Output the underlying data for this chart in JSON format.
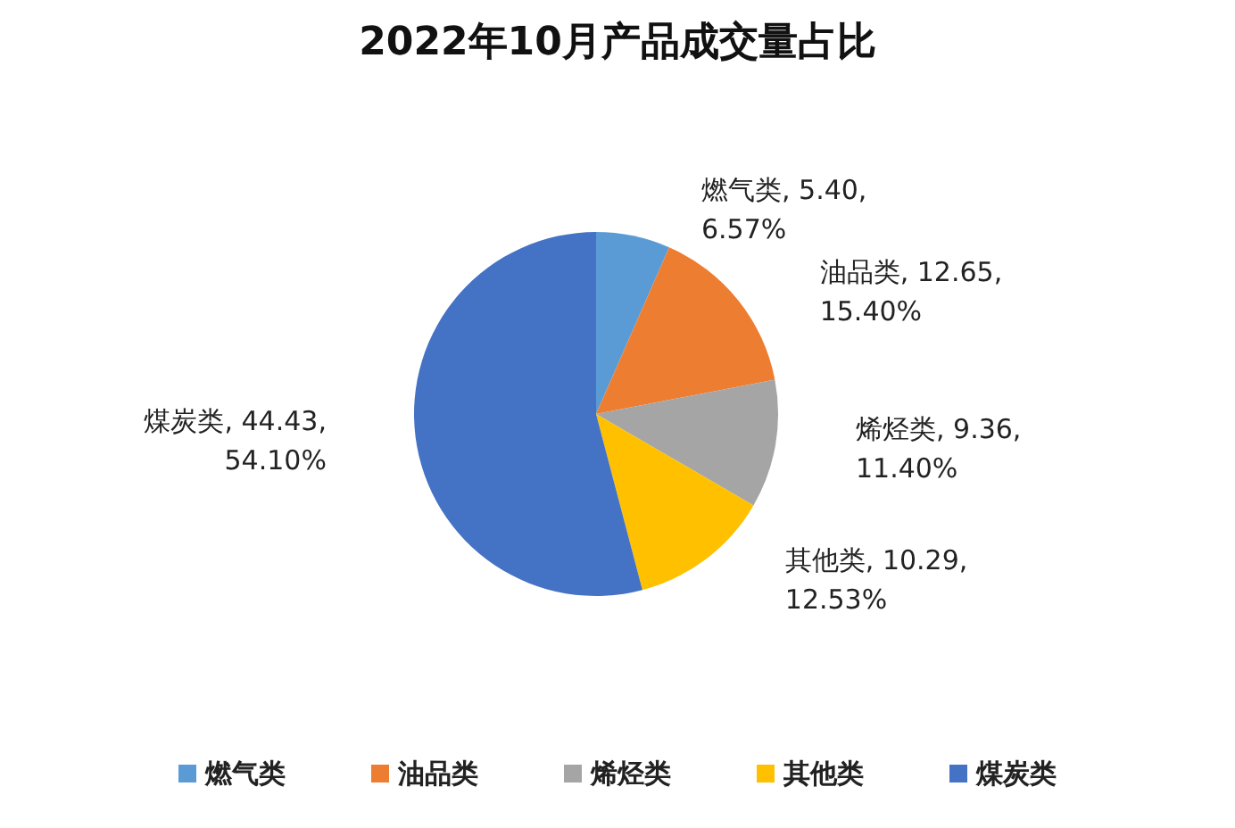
{
  "chart_data": {
    "type": "pie",
    "title": "2022年10月产品成交量占比",
    "categories": [
      "燃气类",
      "油品类",
      "烯烃类",
      "其他类",
      "煤炭类"
    ],
    "values": [
      5.4,
      12.65,
      9.36,
      10.29,
      44.43
    ],
    "value_labels": [
      ", 5.40,\n6.57%",
      ", 12.65,\n15.40%",
      ", 9.36,\n11.40%",
      ", 10.29,\n12.53%",
      ", 44.43,\n54.10%"
    ],
    "colors": [
      "#5b9bd5",
      "#ed7d31",
      "#a5a5a5",
      "#ffc000",
      "#4472c4"
    ],
    "legend": "bottom"
  }
}
